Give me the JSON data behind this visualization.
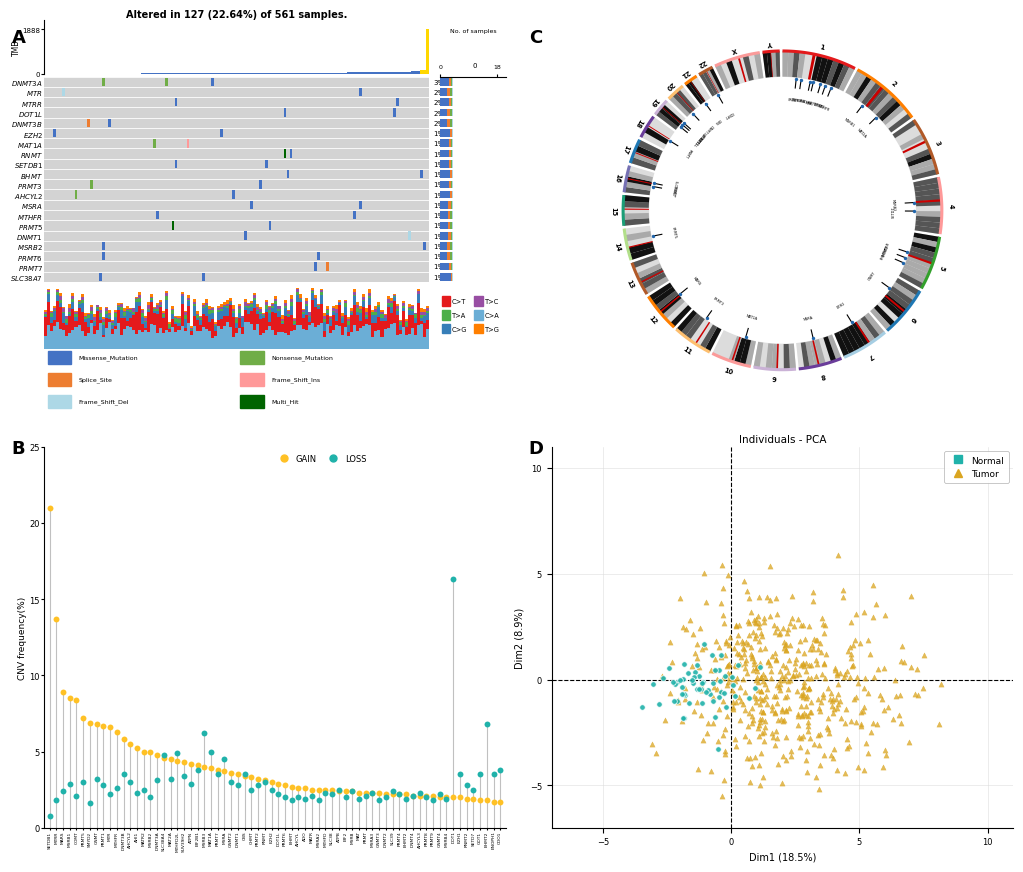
{
  "panel_A": {
    "title": "Altered in 127 (22.64%) of 561 samples.",
    "genes": [
      "DNMT3A",
      "MTR",
      "MTRR",
      "DOT1L",
      "DNMT3B",
      "EZH2",
      "MAT1A",
      "RNMT",
      "SETDB1",
      "BHMT",
      "PRMT3",
      "AHCYL2",
      "MSRA",
      "MTHFR",
      "PRMT5",
      "DNMT1",
      "MSRB2",
      "PRMT6",
      "PRMT7",
      "SLC38A7"
    ],
    "percentages": [
      "3%",
      "2%",
      "2%",
      "2%",
      "2%",
      "1%",
      "1%",
      "1%",
      "1%",
      "1%",
      "1%",
      "1%",
      "1%",
      "1%",
      "1%",
      "1%",
      "1%",
      "1%",
      "1%",
      "1%"
    ],
    "mutation_colors": {
      "Missense_Mutation": "#4472C4",
      "Nonsense_Mutation": "#70AD47",
      "Splice_Site": "#ED7D31",
      "Frame_Shift_Ins": "#FF9999",
      "Frame_Shift_Del": "#ADD8E6",
      "Multi_Hit": "#006400"
    },
    "snv_colors": {
      "C>T": "#E41A1C",
      "C>G": "#377EB8",
      "C>A": "#6BAED6",
      "T>A": "#4DAF4A",
      "T>C": "#984EA3",
      "T>G": "#FF7F00"
    },
    "tmb_color": "#4472C4",
    "tmb_top_color": "#FFD700",
    "bg_color": "#D3D3D3",
    "n_samples": 127
  },
  "panel_B": {
    "ylabel": "CNV frequency(%)",
    "gain_color": "#FFC125",
    "loss_color": "#20B2AA",
    "stem_color": "#C0C0C0",
    "ylim": [
      0,
      25
    ],
    "gene_labels": [
      "SETDB1",
      "MTRR",
      "MARS",
      "MSRB1",
      "COMT",
      "PRMT5",
      "SMYD2",
      "GNMT",
      "PRMT1",
      "MTR",
      "MTHFR",
      "DNMT3B",
      "AHCYL2",
      "AHI1",
      "MATR2",
      "MSRB2",
      "DNMT3A",
      "SLC38A4",
      "MAT2A",
      "MTHFD2L",
      "SUV39H2",
      "ATPN",
      "EIF2B1",
      "MSRB3",
      "MAT1A",
      "PRMT7",
      "MSRA",
      "GNMT2",
      "DNMT1",
      "CBS",
      "CHMT",
      "PRMT2",
      "RNMT",
      "EZH2",
      "DOT1L",
      "PRMT6",
      "BHMT",
      "AHCYL",
      "ADO",
      "MATR",
      "MSRA2",
      "MTHFD",
      "SLC38",
      "ATPB",
      "EIF2",
      "MSRB",
      "MAT",
      "PRMT",
      "MSRA3",
      "GNMT3",
      "DNMT2",
      "SLC39",
      "PRMT4",
      "BHMT2",
      "DNMT4",
      "AHCYL3",
      "PRMT8",
      "PRMT9",
      "GNMT4",
      "MSRB4",
      "DOT1",
      "EZH1",
      "RNMT2",
      "SETD7",
      "GOT1",
      "BHMT2",
      "ENOPH1",
      "CDO1"
    ],
    "gain_values": [
      21.0,
      13.7,
      8.9,
      8.5,
      8.4,
      7.2,
      6.9,
      6.8,
      6.7,
      6.6,
      6.3,
      5.8,
      5.5,
      5.2,
      5.0,
      5.0,
      4.8,
      4.6,
      4.5,
      4.4,
      4.3,
      4.2,
      4.1,
      4.0,
      3.9,
      3.8,
      3.7,
      3.6,
      3.5,
      3.4,
      3.3,
      3.2,
      3.1,
      3.0,
      2.9,
      2.8,
      2.7,
      2.6,
      2.6,
      2.5,
      2.5,
      2.5,
      2.5,
      2.4,
      2.4,
      2.4,
      2.3,
      2.3,
      2.3,
      2.3,
      2.2,
      2.2,
      2.2,
      2.2,
      2.1,
      2.1,
      2.1,
      2.1,
      2.0,
      2.0,
      2.0,
      2.0,
      1.9,
      1.9,
      1.8,
      1.8,
      1.7,
      1.7
    ],
    "loss_values": [
      0.8,
      1.8,
      2.4,
      2.9,
      2.1,
      3.0,
      1.6,
      3.2,
      2.8,
      2.2,
      2.6,
      3.5,
      3.0,
      2.3,
      2.5,
      2.0,
      3.1,
      4.8,
      3.2,
      4.9,
      3.4,
      2.9,
      3.8,
      6.2,
      5.0,
      3.5,
      4.5,
      3.0,
      2.8,
      3.5,
      2.5,
      2.8,
      3.0,
      2.5,
      2.2,
      2.0,
      1.8,
      2.0,
      1.9,
      2.1,
      1.8,
      2.3,
      2.2,
      2.5,
      2.0,
      2.4,
      1.9,
      2.1,
      2.3,
      1.8,
      2.0,
      2.4,
      2.2,
      1.9,
      2.1,
      2.3,
      2.0,
      1.8,
      2.2,
      1.9,
      16.3,
      3.5,
      2.8,
      2.5,
      3.5,
      6.8,
      3.5,
      3.8
    ]
  },
  "panel_C": {
    "chr_data": [
      [
        "1",
        249,
        "#E31A1C"
      ],
      [
        "2",
        242,
        "#FF7F00"
      ],
      [
        "3",
        198,
        "#B15928"
      ],
      [
        "4",
        190,
        "#FF9999"
      ],
      [
        "5",
        182,
        "#33A02C"
      ],
      [
        "6",
        171,
        "#1F78B4"
      ],
      [
        "7",
        159,
        "#A6CEE3"
      ],
      [
        "8",
        146,
        "#6A3D9A"
      ],
      [
        "9",
        141,
        "#CAB2D6"
      ],
      [
        "10",
        135,
        "#FB9A99"
      ],
      [
        "11",
        135,
        "#FDBF6F"
      ],
      [
        "12",
        133,
        "#FF7F00"
      ],
      [
        "13",
        115,
        "#B15928"
      ],
      [
        "14",
        107,
        "#B2DF8A"
      ],
      [
        "15",
        102,
        "#1B9E77"
      ],
      [
        "16",
        90,
        "#7570B3"
      ],
      [
        "17",
        83,
        "#1F78B4"
      ],
      [
        "18",
        80,
        "#6A3D9A"
      ],
      [
        "19",
        59,
        "#CAB2D6"
      ],
      [
        "20",
        63,
        "#FDBF6F"
      ],
      [
        "21",
        47,
        "#FF7F00"
      ],
      [
        "22",
        51,
        "#B15928"
      ],
      [
        "X",
        155,
        "#FB9A99"
      ],
      [
        "Y",
        57,
        "#E31A1C"
      ]
    ]
  },
  "panel_D": {
    "title": "Individuals - PCA",
    "xlabel": "Dim1 (18.5%)",
    "ylabel": "Dim2 (8.9%)",
    "normal_color": "#20B2AA",
    "tumor_color": "#DAA520",
    "xlim": [
      -7,
      11
    ],
    "ylim": [
      -7,
      11
    ],
    "xticks": [
      -5,
      0,
      5,
      10
    ],
    "yticks": [
      -5,
      0,
      5,
      10
    ]
  }
}
